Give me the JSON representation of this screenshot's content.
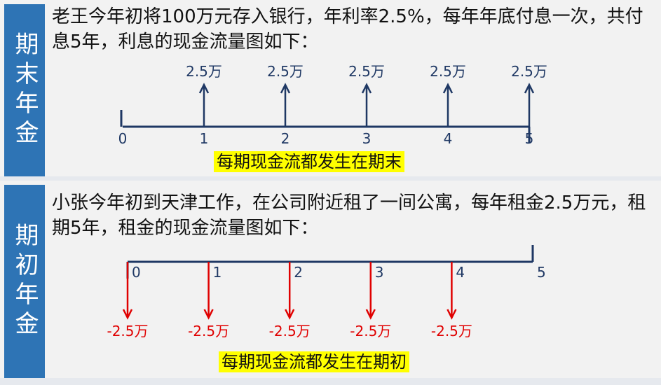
{
  "annuity_due_end": {
    "side_label": "期末年金",
    "description": "老王今年初将100万元存入银行，年利率2.5%，每年年底付息一次，共付息5年，利息的现金流量图如下：",
    "ticks": [
      "0",
      "1",
      "2",
      "3",
      "4",
      "5"
    ],
    "flows": [
      {
        "period": 1,
        "label": "2.5万"
      },
      {
        "period": 2,
        "label": "2.5万"
      },
      {
        "period": 3,
        "label": "2.5万"
      },
      {
        "period": 4,
        "label": "2.5万"
      },
      {
        "period": 5,
        "label": "2.5万"
      }
    ],
    "caption": "每期现金流都发生在期末",
    "arrow_color": "#1f3864"
  },
  "annuity_due_begin": {
    "side_label": "期初年金",
    "description": "小张今年初到天津工作，在公司附近租了一间公寓，每年租金2.5万元，租期5年，租金的现金流量图如下：",
    "ticks": [
      "0",
      "1",
      "2",
      "3",
      "4",
      "5"
    ],
    "flows": [
      {
        "period": 0,
        "label": "-2.5万"
      },
      {
        "period": 1,
        "label": "-2.5万"
      },
      {
        "period": 2,
        "label": "-2.5万"
      },
      {
        "period": 3,
        "label": "-2.5万"
      },
      {
        "period": 4,
        "label": "-2.5万"
      }
    ],
    "caption": "每期现金流都发生在期初",
    "arrow_color": "#e00000"
  }
}
